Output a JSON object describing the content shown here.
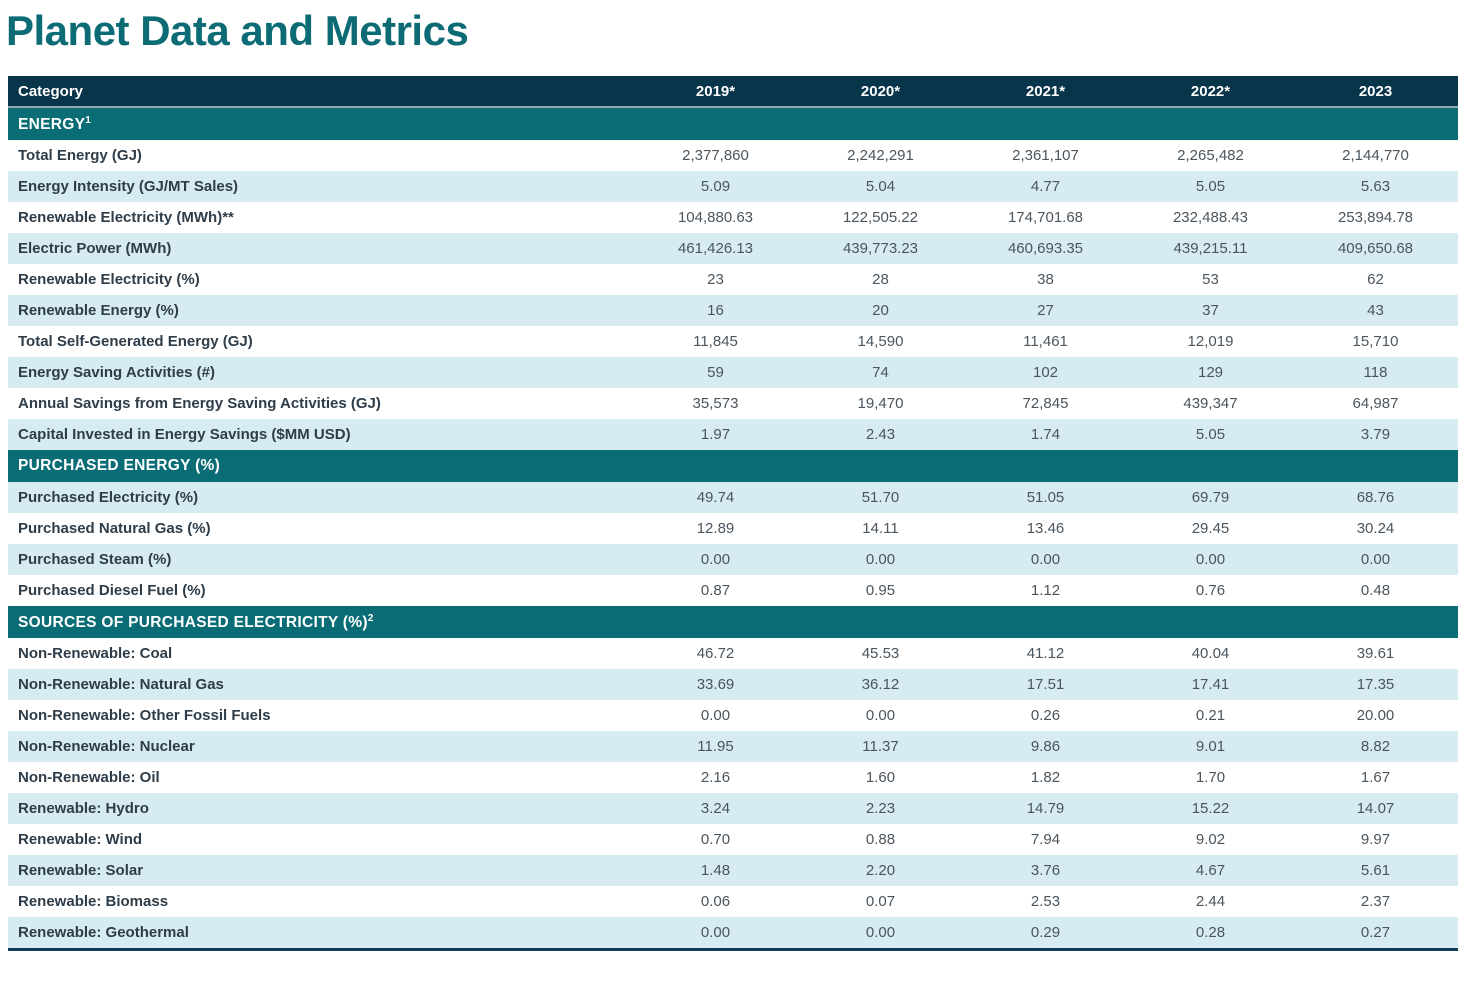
{
  "page": {
    "title": "Planet Data and Metrics"
  },
  "colors": {
    "title": "#0C6B74",
    "header_bg": "#09354A",
    "section_bg": "#0A6C75",
    "stripe_bg": "#D6ECF1",
    "label_text": "#2E3D49",
    "value_text": "#4A555E",
    "bottom_border": "#0D3D56"
  },
  "table": {
    "columns": [
      "Category",
      "2019*",
      "2020*",
      "2021*",
      "2022*",
      "2023"
    ],
    "sections": [
      {
        "header": "ENERGY",
        "header_sup": "1",
        "rows": [
          {
            "label": "Total Energy (GJ)",
            "values": [
              "2,377,860",
              "2,242,291",
              "2,361,107",
              "2,265,482",
              "2,144,770"
            ]
          },
          {
            "label": "Energy Intensity (GJ/MT Sales)",
            "values": [
              "5.09",
              "5.04",
              "4.77",
              "5.05",
              "5.63"
            ]
          },
          {
            "label": "Renewable Electricity (MWh)**",
            "values": [
              "104,880.63",
              "122,505.22",
              "174,701.68",
              "232,488.43",
              "253,894.78"
            ]
          },
          {
            "label": "Electric Power (MWh)",
            "values": [
              "461,426.13",
              "439,773.23",
              "460,693.35",
              "439,215.11",
              "409,650.68"
            ]
          },
          {
            "label": "Renewable Electricity (%)",
            "values": [
              "23",
              "28",
              "38",
              "53",
              "62"
            ]
          },
          {
            "label": "Renewable Energy (%)",
            "values": [
              "16",
              "20",
              "27",
              "37",
              "43"
            ]
          },
          {
            "label": "Total Self-Generated Energy (GJ)",
            "values": [
              "11,845",
              "14,590",
              "11,461",
              "12,019",
              "15,710"
            ]
          },
          {
            "label": "Energy Saving Activities (#)",
            "values": [
              "59",
              "74",
              "102",
              "129",
              "118"
            ]
          },
          {
            "label": "Annual Savings from Energy Saving Activities (GJ)",
            "values": [
              "35,573",
              "19,470",
              "72,845",
              "439,347",
              "64,987"
            ]
          },
          {
            "label": "Capital Invested in Energy Savings ($MM USD)",
            "values": [
              "1.97",
              "2.43",
              "1.74",
              "5.05",
              "3.79"
            ]
          }
        ]
      },
      {
        "header": "PURCHASED ENERGY (%)",
        "header_sup": "",
        "rows": [
          {
            "label": "Purchased Electricity (%)",
            "values": [
              "49.74",
              "51.70",
              "51.05",
              "69.79",
              "68.76"
            ]
          },
          {
            "label": "Purchased Natural Gas (%)",
            "values": [
              "12.89",
              "14.11",
              "13.46",
              "29.45",
              "30.24"
            ]
          },
          {
            "label": "Purchased Steam (%)",
            "values": [
              "0.00",
              "0.00",
              "0.00",
              "0.00",
              "0.00"
            ]
          },
          {
            "label": "Purchased Diesel Fuel (%)",
            "values": [
              "0.87",
              "0.95",
              "1.12",
              "0.76",
              "0.48"
            ]
          }
        ]
      },
      {
        "header": "SOURCES OF PURCHASED ELECTRICITY (%)",
        "header_sup": "2",
        "rows": [
          {
            "label": "Non-Renewable: Coal",
            "values": [
              "46.72",
              "45.53",
              "41.12",
              "40.04",
              "39.61"
            ]
          },
          {
            "label": "Non-Renewable: Natural Gas",
            "values": [
              "33.69",
              "36.12",
              "17.51",
              "17.41",
              "17.35"
            ]
          },
          {
            "label": "Non-Renewable: Other Fossil Fuels",
            "values": [
              "0.00",
              "0.00",
              "0.26",
              "0.21",
              "20.00"
            ]
          },
          {
            "label": "Non-Renewable: Nuclear",
            "values": [
              "11.95",
              "11.37",
              "9.86",
              "9.01",
              "8.82"
            ]
          },
          {
            "label": "Non-Renewable: Oil",
            "values": [
              "2.16",
              "1.60",
              "1.82",
              "1.70",
              "1.67"
            ]
          },
          {
            "label": "Renewable: Hydro",
            "values": [
              "3.24",
              "2.23",
              "14.79",
              "15.22",
              "14.07"
            ]
          },
          {
            "label": "Renewable: Wind",
            "values": [
              "0.70",
              "0.88",
              "7.94",
              "9.02",
              "9.97"
            ]
          },
          {
            "label": "Renewable: Solar",
            "values": [
              "1.48",
              "2.20",
              "3.76",
              "4.67",
              "5.61"
            ]
          },
          {
            "label": "Renewable: Biomass",
            "values": [
              "0.06",
              "0.07",
              "2.53",
              "2.44",
              "2.37"
            ]
          },
          {
            "label": "Renewable: Geothermal",
            "values": [
              "0.00",
              "0.00",
              "0.29",
              "0.28",
              "0.27"
            ]
          }
        ]
      }
    ]
  }
}
